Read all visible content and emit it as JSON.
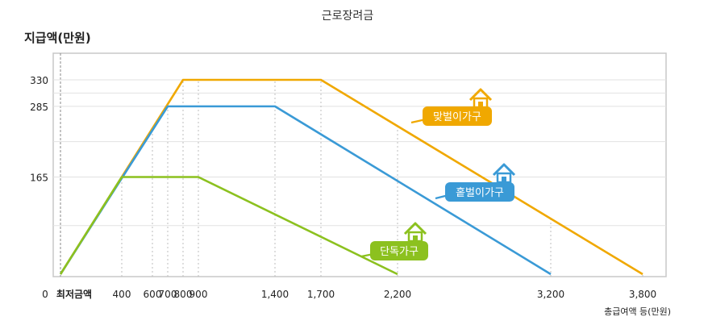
{
  "chart_data": {
    "type": "line",
    "title": "근로장려금",
    "ylabel": "지급액(만원)",
    "xlabel": "총급여액 등(만원)",
    "x_origin_label": "0",
    "x_min_label": "최저금액",
    "x_ticks": [
      400,
      600,
      700,
      800,
      900,
      1400,
      1700,
      2200,
      3200,
      3800
    ],
    "x_tick_labels": [
      "400",
      "600",
      "700",
      "800",
      "900",
      "1,400",
      "1,700",
      "2,200",
      "3,200",
      "3,800"
    ],
    "y_ticks": [
      165,
      285,
      330
    ],
    "y_tick_labels": [
      "165",
      "285",
      "330"
    ],
    "ylim": [
      0,
      380
    ],
    "grid": true,
    "series": [
      {
        "name": "맞벌이가구",
        "color": "#f0a800",
        "x": [
          0,
          800,
          1700,
          3800
        ],
        "y": [
          0,
          330,
          330,
          0
        ]
      },
      {
        "name": "홑벌이가구",
        "color": "#3a9ad6",
        "x": [
          0,
          700,
          1400,
          3200
        ],
        "y": [
          0,
          285,
          285,
          0
        ]
      },
      {
        "name": "단독가구",
        "color": "#8cc11f",
        "x": [
          0,
          400,
          900,
          2200
        ],
        "y": [
          0,
          165,
          165,
          0
        ]
      }
    ]
  }
}
